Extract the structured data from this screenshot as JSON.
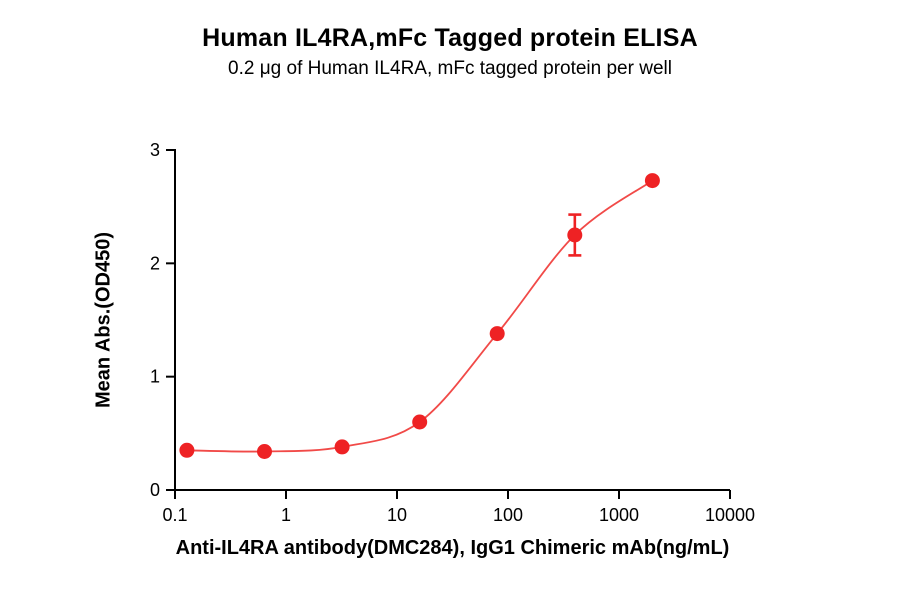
{
  "chart_data": {
    "type": "scatter",
    "title": "Human IL4RA,mFc Tagged protein ELISA",
    "subtitle": "0.2 μg of Human IL4RA, mFc tagged protein per well",
    "xlabel": "Anti-IL4RA antibody(DMC284), IgG1 Chimeric mAb(ng/mL)",
    "ylabel": "Mean Abs.(OD450)",
    "x_scale": "log",
    "xlim": [
      0.1,
      10000
    ],
    "ylim": [
      0,
      3
    ],
    "x_ticks": [
      0.1,
      1,
      10,
      100,
      1000,
      10000
    ],
    "x_tick_labels": [
      "0.1",
      "1",
      "10",
      "100",
      "1000",
      "10000"
    ],
    "y_ticks": [
      0,
      1,
      2,
      3
    ],
    "y_tick_labels": [
      "0",
      "1",
      "2",
      "3"
    ],
    "grid": "off",
    "legend": "none",
    "series": [
      {
        "name": "Anti-IL4RA antibody (DMC284) IgG1 Chimeric mAb",
        "x": [
          0.128,
          0.64,
          3.2,
          16,
          80,
          400,
          2000
        ],
        "y": [
          0.35,
          0.34,
          0.38,
          0.6,
          1.38,
          2.25,
          2.73
        ],
        "y_err": [
          0,
          0,
          0,
          0,
          0,
          0.18,
          0
        ]
      }
    ],
    "fit": "sigmoidal dose-response curve through points",
    "marker_color": "#ee2224",
    "line_color": "#f14a48",
    "axis_color": "#000000"
  }
}
